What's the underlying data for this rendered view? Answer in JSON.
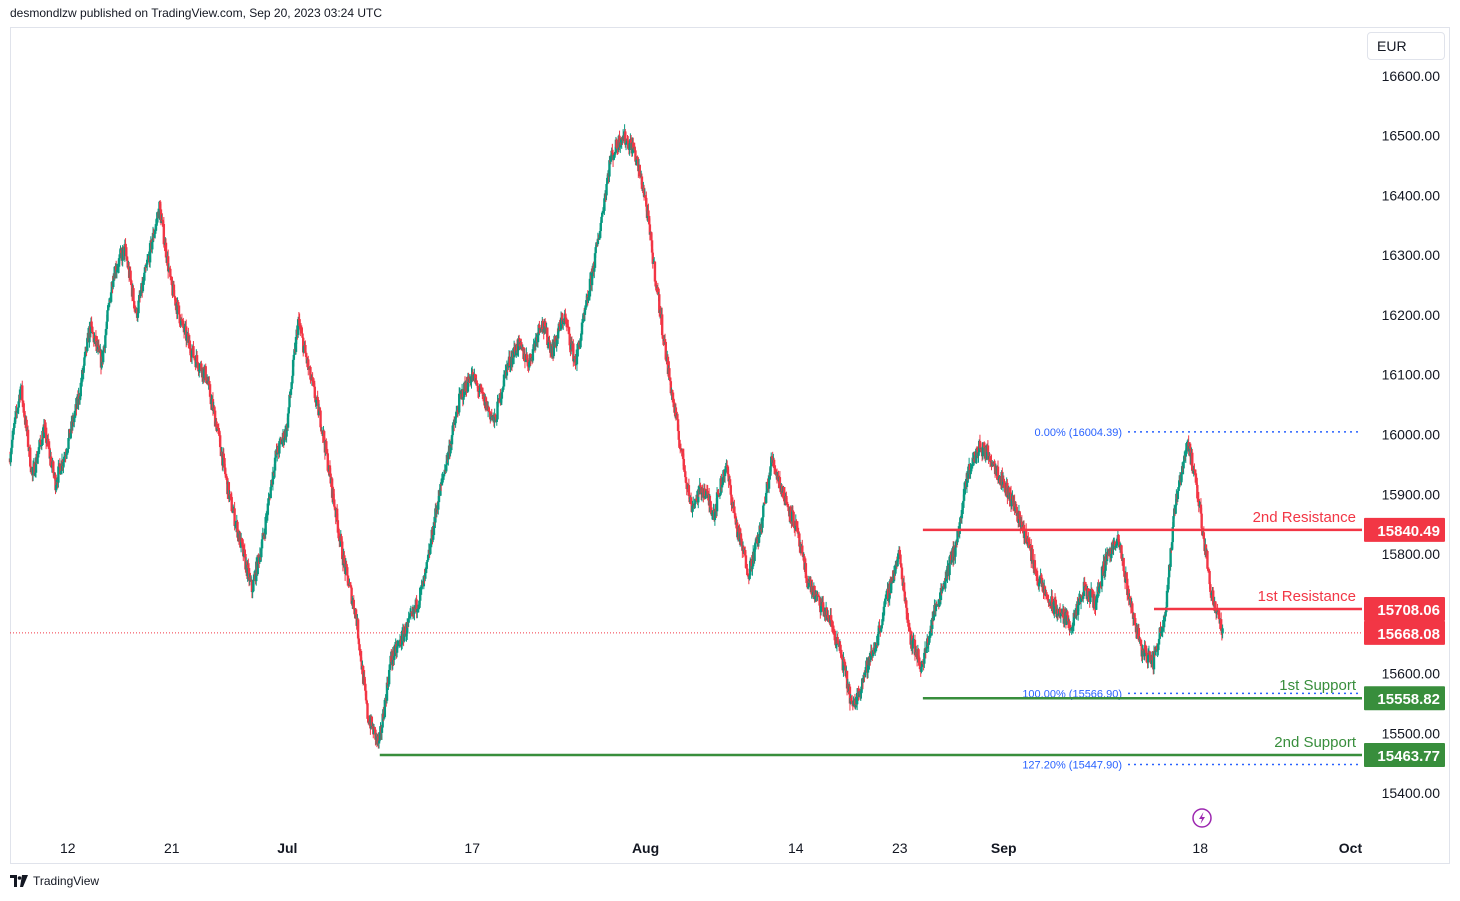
{
  "header": {
    "attribution": "desmondlzw published on TradingView.com, Sep 20, 2023 03:24 UTC"
  },
  "footer": {
    "brand": "TradingView"
  },
  "currency": "EUR",
  "colors": {
    "up": "#089981",
    "down": "#f23645",
    "resistance": "#f23645",
    "support": "#388e3c",
    "fib": "#2962ff",
    "current_price_line": "#f23645",
    "flash_icon": "#9c27b0"
  },
  "chart_data": {
    "type": "candlestick",
    "ylim": [
      15330,
      16680
    ],
    "y_ticks": [
      16600,
      16500,
      16400,
      16300,
      16200,
      16100,
      16000,
      15900,
      15800,
      15700,
      15600,
      15500,
      15400
    ],
    "y_tick_labels": [
      "16600.00",
      "16500.00",
      "16400.00",
      "16300.00",
      "16200.00",
      "16100.00",
      "16000.00",
      "15900.00",
      "15800.00",
      "15700.00",
      "15600.00",
      "15500.00",
      "15400.00"
    ],
    "x_range": [
      "2023-06-07",
      "2023-10-02"
    ],
    "x_ticks": [
      {
        "label": "12",
        "date": "2023-06-12",
        "bold": false
      },
      {
        "label": "21",
        "date": "2023-06-21",
        "bold": false
      },
      {
        "label": "Jul",
        "date": "2023-07-01",
        "bold": true
      },
      {
        "label": "17",
        "date": "2023-07-17",
        "bold": false
      },
      {
        "label": "Aug",
        "date": "2023-08-01",
        "bold": true
      },
      {
        "label": "14",
        "date": "2023-08-14",
        "bold": false
      },
      {
        "label": "23",
        "date": "2023-08-23",
        "bold": false
      },
      {
        "label": "Sep",
        "date": "2023-09-01",
        "bold": true
      },
      {
        "label": "18",
        "date": "2023-09-18",
        "bold": false
      },
      {
        "label": "Oct",
        "date": "2023-10-01",
        "bold": true
      }
    ],
    "price_path": [
      [
        "2023-06-07",
        15960
      ],
      [
        "2023-06-08",
        16080
      ],
      [
        "2023-06-09",
        15930
      ],
      [
        "2023-06-10",
        16010
      ],
      [
        "2023-06-11",
        15920
      ],
      [
        "2023-06-12",
        15980
      ],
      [
        "2023-06-13",
        16060
      ],
      [
        "2023-06-14",
        16180
      ],
      [
        "2023-06-15",
        16120
      ],
      [
        "2023-06-16",
        16270
      ],
      [
        "2023-06-17",
        16310
      ],
      [
        "2023-06-18",
        16200
      ],
      [
        "2023-06-19",
        16290
      ],
      [
        "2023-06-20",
        16380
      ],
      [
        "2023-06-21",
        16250
      ],
      [
        "2023-06-22",
        16180
      ],
      [
        "2023-06-23",
        16130
      ],
      [
        "2023-06-24",
        16100
      ],
      [
        "2023-06-25",
        16010
      ],
      [
        "2023-06-26",
        15900
      ],
      [
        "2023-06-27",
        15820
      ],
      [
        "2023-06-28",
        15740
      ],
      [
        "2023-06-29",
        15830
      ],
      [
        "2023-06-30",
        15960
      ],
      [
        "2023-07-01",
        16010
      ],
      [
        "2023-07-02",
        16190
      ],
      [
        "2023-07-03",
        16100
      ],
      [
        "2023-07-04",
        16020
      ],
      [
        "2023-07-05",
        15900
      ],
      [
        "2023-07-06",
        15780
      ],
      [
        "2023-07-07",
        15700
      ],
      [
        "2023-07-08",
        15530
      ],
      [
        "2023-07-09",
        15480
      ],
      [
        "2023-07-10",
        15620
      ],
      [
        "2023-07-11",
        15660
      ],
      [
        "2023-07-12",
        15700
      ],
      [
        "2023-07-13",
        15760
      ],
      [
        "2023-07-14",
        15880
      ],
      [
        "2023-07-15",
        15970
      ],
      [
        "2023-07-16",
        16060
      ],
      [
        "2023-07-17",
        16100
      ],
      [
        "2023-07-18",
        16060
      ],
      [
        "2023-07-19",
        16020
      ],
      [
        "2023-07-20",
        16110
      ],
      [
        "2023-07-21",
        16150
      ],
      [
        "2023-07-22",
        16120
      ],
      [
        "2023-07-23",
        16190
      ],
      [
        "2023-07-24",
        16140
      ],
      [
        "2023-07-25",
        16200
      ],
      [
        "2023-07-26",
        16120
      ],
      [
        "2023-07-27",
        16220
      ],
      [
        "2023-07-28",
        16330
      ],
      [
        "2023-07-29",
        16460
      ],
      [
        "2023-07-30",
        16500
      ],
      [
        "2023-07-31",
        16480
      ],
      [
        "2023-08-01",
        16400
      ],
      [
        "2023-08-02",
        16250
      ],
      [
        "2023-08-03",
        16110
      ],
      [
        "2023-08-04",
        15990
      ],
      [
        "2023-08-05",
        15880
      ],
      [
        "2023-08-06",
        15910
      ],
      [
        "2023-08-07",
        15870
      ],
      [
        "2023-08-08",
        15950
      ],
      [
        "2023-08-09",
        15840
      ],
      [
        "2023-08-10",
        15770
      ],
      [
        "2023-08-11",
        15840
      ],
      [
        "2023-08-12",
        15960
      ],
      [
        "2023-08-13",
        15900
      ],
      [
        "2023-08-14",
        15850
      ],
      [
        "2023-08-15",
        15760
      ],
      [
        "2023-08-16",
        15720
      ],
      [
        "2023-08-17",
        15690
      ],
      [
        "2023-08-18",
        15630
      ],
      [
        "2023-08-19",
        15540
      ],
      [
        "2023-08-20",
        15600
      ],
      [
        "2023-08-21",
        15650
      ],
      [
        "2023-08-22",
        15730
      ],
      [
        "2023-08-23",
        15800
      ],
      [
        "2023-08-24",
        15660
      ],
      [
        "2023-08-25",
        15610
      ],
      [
        "2023-08-26",
        15700
      ],
      [
        "2023-08-27",
        15760
      ],
      [
        "2023-08-28",
        15820
      ],
      [
        "2023-08-29",
        15940
      ],
      [
        "2023-08-30",
        15980
      ],
      [
        "2023-08-31",
        15960
      ],
      [
        "2023-09-01",
        15920
      ],
      [
        "2023-09-02",
        15880
      ],
      [
        "2023-09-03",
        15830
      ],
      [
        "2023-09-04",
        15760
      ],
      [
        "2023-09-05",
        15720
      ],
      [
        "2023-09-06",
        15700
      ],
      [
        "2023-09-07",
        15680
      ],
      [
        "2023-09-08",
        15740
      ],
      [
        "2023-09-09",
        15720
      ],
      [
        "2023-09-10",
        15800
      ],
      [
        "2023-09-11",
        15820
      ],
      [
        "2023-09-12",
        15720
      ],
      [
        "2023-09-13",
        15640
      ],
      [
        "2023-09-14",
        15620
      ],
      [
        "2023-09-15",
        15700
      ],
      [
        "2023-09-16",
        15900
      ],
      [
        "2023-09-17",
        15990
      ],
      [
        "2023-09-18",
        15880
      ],
      [
        "2023-09-19",
        15740
      ],
      [
        "2023-09-20",
        15668
      ]
    ],
    "current_price": 15668.08,
    "price_labels": [
      {
        "value": 15840.49,
        "label": "15840.49",
        "kind": "resistance"
      },
      {
        "value": 15708.06,
        "label": "15708.06",
        "kind": "resistance"
      },
      {
        "value": 15668.08,
        "label": "15668.08",
        "kind": "current"
      },
      {
        "value": 15558.82,
        "label": "15558.82",
        "kind": "support"
      },
      {
        "value": 15463.77,
        "label": "15463.77",
        "kind": "support"
      }
    ],
    "levels": [
      {
        "name": "2nd Resistance",
        "value": 15840.49,
        "kind": "resistance",
        "from": "2023-08-25"
      },
      {
        "name": "1st Resistance",
        "value": 15708.06,
        "kind": "resistance",
        "from": "2023-09-14"
      },
      {
        "name": "1st Support",
        "value": 15558.82,
        "kind": "support",
        "from": "2023-08-25"
      },
      {
        "name": "2nd Support",
        "value": 15463.77,
        "kind": "support",
        "from": "2023-07-09"
      }
    ],
    "fib_levels": [
      {
        "label": "0.00% (16004.39)",
        "value": 16004.39
      },
      {
        "label": "100.00% (15566.90)",
        "value": 15566.9
      },
      {
        "label": "127.20% (15447.90)",
        "value": 15447.9
      }
    ]
  }
}
